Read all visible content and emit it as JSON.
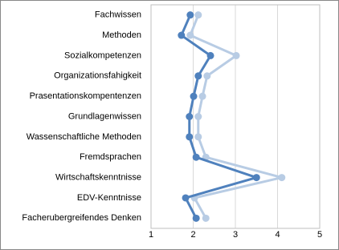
{
  "chart_data": {
    "type": "line",
    "orientation": "horizontal",
    "categories": [
      "Fachwissen",
      "Methoden",
      "Sozialkompetenzen",
      "Organizationsfahigkeit",
      "Prasentationskompentenzen",
      "Grundlagenwissen",
      "Wassenschaftliche Methoden",
      "Fremdsprachen",
      "Wirtschaftskenntnisse",
      "EDV-Kenntnisse",
      "Facherubergreifendes Denken"
    ],
    "series": [
      {
        "color": "#b8cce4",
        "values": [
          2.12,
          1.93,
          3.02,
          2.33,
          2.22,
          2.12,
          2.12,
          2.3,
          4.1,
          2.03,
          2.3
        ]
      },
      {
        "color": "#4f81bd",
        "values": [
          1.93,
          1.72,
          2.41,
          2.12,
          2.01,
          1.91,
          1.91,
          2.07,
          3.5,
          1.82,
          2.07
        ]
      }
    ],
    "xlim": [
      1,
      5
    ],
    "xticks": [
      1,
      2,
      3,
      4,
      5
    ],
    "grid": true
  }
}
